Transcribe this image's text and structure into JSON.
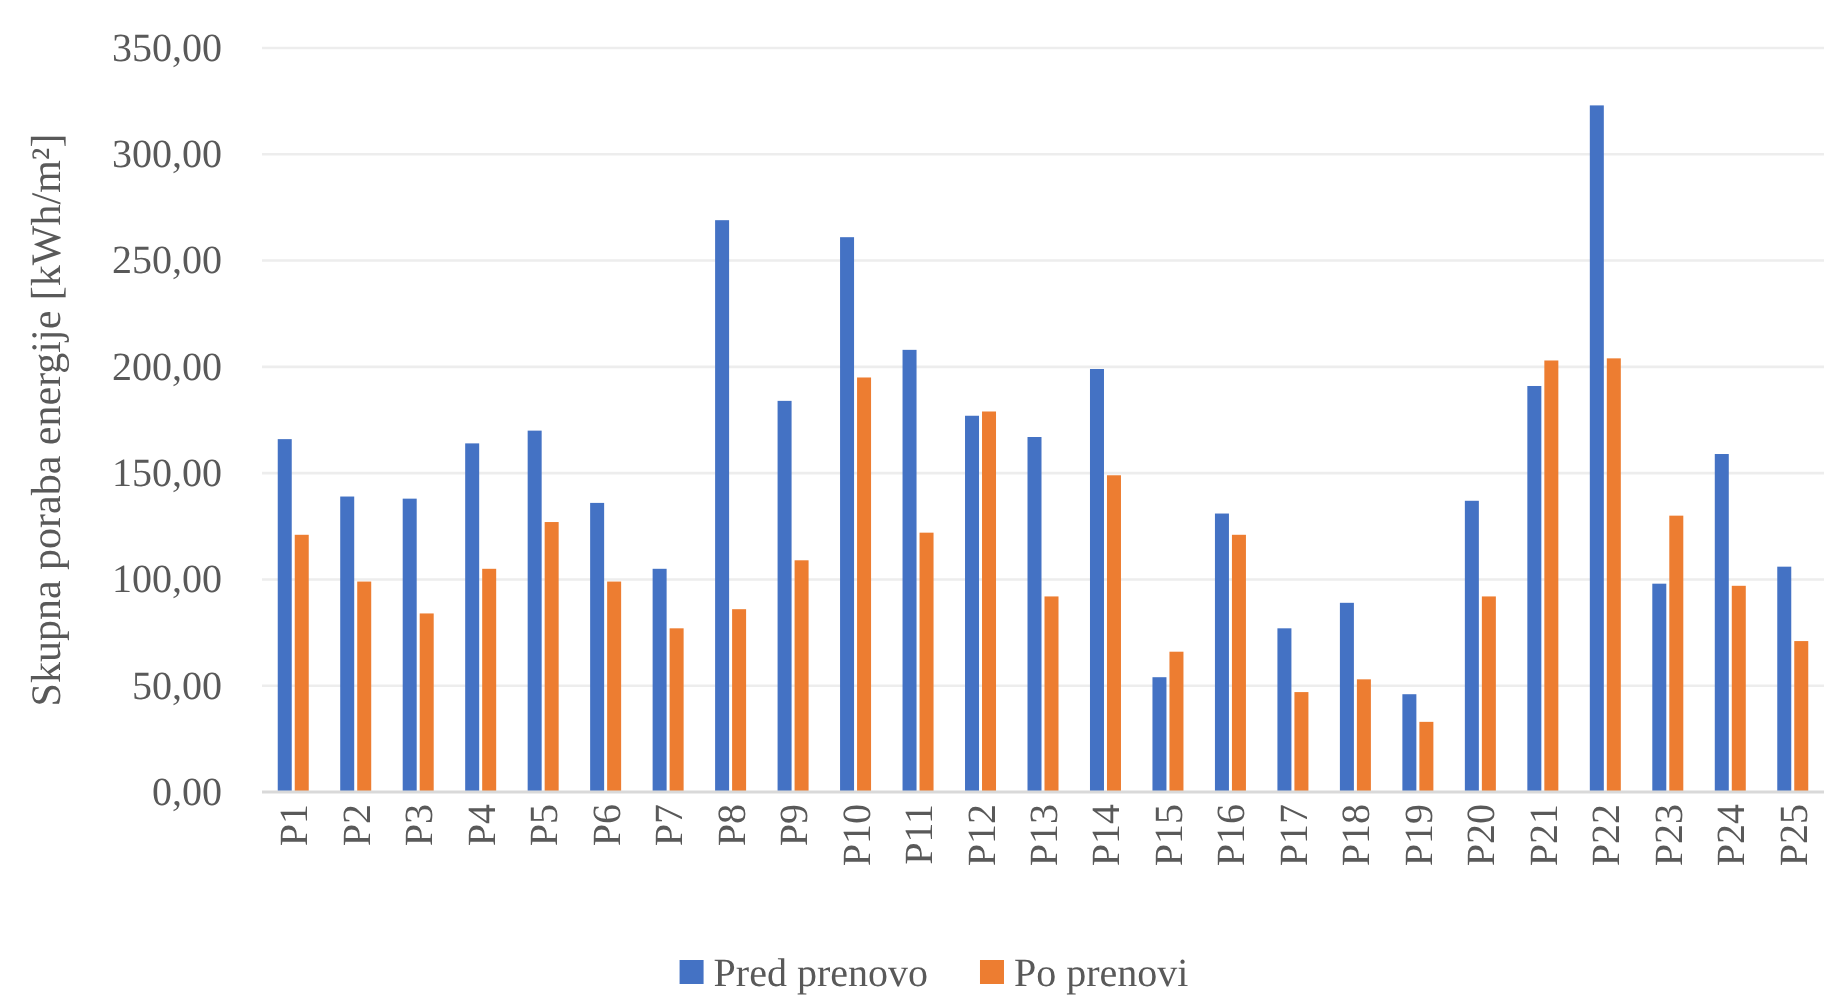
{
  "chart_data": {
    "type": "bar",
    "ylabel": "Skupna poraba energije [kWh/m²]",
    "categories": [
      "P1",
      "P2",
      "P3",
      "P4",
      "P5",
      "P6",
      "P7",
      "P8",
      "P9",
      "P10",
      "P11",
      "P12",
      "P13",
      "P14",
      "P15",
      "P16",
      "P17",
      "P18",
      "P19",
      "P20",
      "P21",
      "P22",
      "P23",
      "P24",
      "P25"
    ],
    "series": [
      {
        "name": "Pred prenovo",
        "color": "#4472c4",
        "values": [
          166,
          139,
          138,
          164,
          170,
          136,
          105,
          269,
          184,
          261,
          208,
          177,
          167,
          199,
          54,
          131,
          77,
          89,
          46,
          137,
          191,
          323,
          98,
          159,
          106
        ]
      },
      {
        "name": "Po prenovi",
        "color": "#ed7d31",
        "values": [
          121,
          99,
          84,
          105,
          127,
          99,
          77,
          86,
          109,
          195,
          122,
          179,
          92,
          149,
          66,
          121,
          47,
          53,
          33,
          92,
          203,
          204,
          130,
          97,
          71
        ]
      }
    ],
    "ylim": [
      0,
      350
    ],
    "yticks": [
      {
        "value": 0,
        "label": "0,00"
      },
      {
        "value": 50,
        "label": "50,00"
      },
      {
        "value": 100,
        "label": "100,00"
      },
      {
        "value": 150,
        "label": "150,00"
      },
      {
        "value": 200,
        "label": "200,00"
      },
      {
        "value": 250,
        "label": "250,00"
      },
      {
        "value": 300,
        "label": "300,00"
      },
      {
        "value": 350,
        "label": "350,00"
      }
    ],
    "grid": "y",
    "legend": "bottom"
  }
}
